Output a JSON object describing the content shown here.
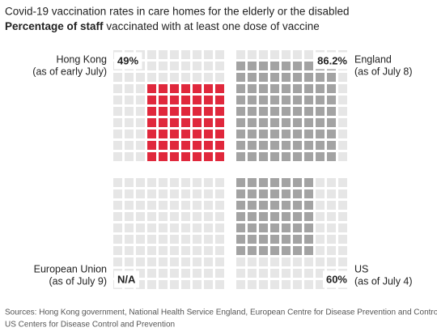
{
  "chart_data": {
    "type": "waffle",
    "title": "Covid-19 vaccination rates in care homes for the elderly or the disabled",
    "subtitle": [
      "Percentage of staff",
      "vaccinated with at least one dose of vaccine"
    ],
    "empty_color": "#e6e6e6",
    "panels": [
      {
        "name": "Hong Kong",
        "date": "(as of early July)",
        "values": [
          49
        ],
        "value_labels": [
          "49%"
        ],
        "color": "#e0283c"
      },
      {
        "name": "England",
        "date": "(as of July 8)",
        "values": [
          86.2
        ],
        "value_labels": [
          "86.2%"
        ],
        "color": "#a3a3a3"
      },
      {
        "name": "European Union",
        "date": "(as of July 9)",
        "values": [
          null
        ],
        "value_labels": [
          "N/A"
        ],
        "color": "#a3a3a3"
      },
      {
        "name": "US",
        "date": "(as of July 4)",
        "values": [
          60
        ],
        "value_labels": [
          "60%"
        ],
        "color": "#a3a3a3"
      }
    ],
    "source": [
      "Sources: Hong Kong government, National Health Service England, European Centre for Disease Prevention and Control,",
      "US Centers for Disease Control and Prevention"
    ]
  }
}
